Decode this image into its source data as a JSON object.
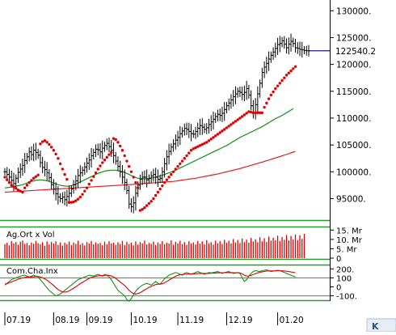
{
  "chart_data": [
    {
      "type": "line",
      "panel": "price",
      "y_ticks": [
        "130000.",
        "125000.",
        "120000.",
        "115000.",
        "110000.",
        "105000.",
        "100000.",
        "95000."
      ],
      "y_tick_values": [
        130000,
        125000,
        120000,
        115000,
        110000,
        105000,
        100000,
        95000
      ],
      "ylim": [
        91000,
        132000
      ],
      "last_price_label": "122540.2",
      "last_price": 122540.2,
      "x_tick_labels": [
        "07.19",
        "08.19",
        "09.19",
        "10.19",
        "11.19",
        "12.19",
        "01.20"
      ],
      "x_tick_index": [
        0,
        22,
        37,
        57,
        78,
        100,
        123
      ],
      "n_bars": 138,
      "series": [
        {
          "kind": "ohlc",
          "color": "#000000",
          "close": [
            100000,
            99500,
            99000,
            98400,
            97800,
            98800,
            99900,
            100500,
            101200,
            102100,
            102800,
            103700,
            103200,
            104000,
            103600,
            103100,
            101700,
            100800,
            100400,
            99800,
            98900,
            97600,
            96800,
            95900,
            95300,
            95000,
            95300,
            94800,
            95400,
            96000,
            96800,
            97600,
            98300,
            99300,
            99800,
            100300,
            100900,
            101600,
            102200,
            103000,
            103600,
            104200,
            104100,
            103700,
            104400,
            104900,
            105300,
            104700,
            104000,
            103000,
            102000,
            101000,
            100000,
            99000,
            98000,
            96500,
            94000,
            93500,
            94200,
            96000,
            97500,
            98600,
            99000,
            99000,
            98500,
            98800,
            99200,
            99500,
            99000,
            98600,
            98800,
            100000,
            101500,
            102800,
            103800,
            104600,
            105200,
            105900,
            106400,
            107100,
            107600,
            108100,
            107900,
            107500,
            107100,
            107000,
            107500,
            108100,
            108600,
            108300,
            107900,
            108200,
            108800,
            109300,
            109800,
            110300,
            110700,
            110500,
            110900,
            111600,
            112300,
            112800,
            113400,
            114000,
            114500,
            115000,
            114800,
            114400,
            114800,
            115500,
            114300,
            112300,
            111000,
            112500,
            114500,
            116500,
            118500,
            119500,
            120200,
            121000,
            121700,
            122300,
            123000,
            123700,
            123900,
            124400,
            123800,
            123100,
            123800,
            124300,
            123900,
            123100,
            123000,
            122800,
            122700,
            122600,
            122550,
            122540
          ]
        },
        {
          "kind": "ma-short",
          "color": "#1a8c1a",
          "values": [
            97000,
            97050,
            97100,
            97150,
            97200,
            97300,
            97400,
            97500,
            97600,
            97750,
            97900,
            98050,
            98200,
            98300,
            98400,
            98450,
            98500,
            98450,
            98400,
            98300,
            98200,
            98050,
            97900,
            97750,
            97600,
            97500,
            97400,
            97350,
            97300,
            97350,
            97400,
            97550,
            97700,
            97900,
            98100,
            98300,
            98500,
            98700,
            98900,
            99100,
            99300,
            99500,
            99700,
            99850,
            100000,
            100100,
            100200,
            100250,
            100300,
            100300,
            100300,
            100200,
            100100,
            100000,
            99900,
            99700,
            99500,
            99300,
            99100,
            98950,
            98800,
            98750,
            98700,
            98700,
            98700,
            98750,
            98800,
            98900,
            99000,
            99100,
            99200,
            99350,
            99500,
            99650,
            99800,
            99950,
            100100,
            100300,
            100500,
            100700,
            100900,
            101100,
            101300,
            101500,
            101700,
            101900,
            102100,
            102300,
            102500,
            102700,
            102900,
            103100,
            103300,
            103500,
            103700,
            103900,
            104100,
            104300,
            104500,
            104700,
            104900,
            105150,
            105400,
            105650,
            105900,
            106150,
            106400,
            106600,
            106800,
            107000,
            107200,
            107400,
            107600,
            107800,
            108000,
            108200,
            108400,
            108650,
            108900,
            109150,
            109400,
            109650,
            109900,
            110100,
            110300,
            110500,
            110750,
            111000,
            111250,
            111500,
            111750
          ]
        },
        {
          "kind": "ma-long",
          "color": "#e02020",
          "values": [
            96200,
            96225,
            96250,
            96275,
            96300,
            96325,
            96350,
            96375,
            96400,
            96425,
            96450,
            96475,
            96500,
            96525,
            96550,
            96575,
            96600,
            96625,
            96650,
            96675,
            96700,
            96725,
            96750,
            96775,
            96800,
            96825,
            96850,
            96875,
            96900,
            96925,
            96950,
            96975,
            97000,
            97025,
            97050,
            97075,
            97100,
            97125,
            97150,
            97175,
            97200,
            97225,
            97250,
            97275,
            97300,
            97325,
            97350,
            97375,
            97400,
            97425,
            97450,
            97475,
            97500,
            97525,
            97550,
            97575,
            97600,
            97630,
            97660,
            97690,
            97720,
            97750,
            97780,
            97810,
            97840,
            97870,
            97900,
            97930,
            97960,
            97990,
            98020,
            98050,
            98080,
            98110,
            98140,
            98170,
            98200,
            98260,
            98320,
            98380,
            98440,
            98500,
            98560,
            98620,
            98680,
            98740,
            98800,
            98880,
            98960,
            99040,
            99120,
            99200,
            99280,
            99360,
            99440,
            99520,
            99600,
            99700,
            99800,
            99900,
            100000,
            100100,
            100200,
            100300,
            100400,
            100500,
            100600,
            100720,
            100840,
            100960,
            101080,
            101200,
            101320,
            101440,
            101560,
            101680,
            101800,
            101930,
            102060,
            102190,
            102320,
            102450,
            102580,
            102710,
            102840,
            102970,
            103100,
            103240,
            103380,
            103520,
            103660,
            103800
          ]
        },
        {
          "kind": "sar",
          "color": "#e00000",
          "values": [
            99000,
            98500,
            98000,
            97500,
            97200,
            96900,
            96600,
            96400,
            96200,
            97000,
            97500,
            98000,
            98400,
            98800,
            99100,
            99400,
            105200,
            105600,
            105800,
            105500,
            105100,
            104600,
            104000,
            103300,
            102500,
            101500,
            100500,
            99500,
            98600,
            94300,
            94300,
            94400,
            94600,
            94900,
            95300,
            95800,
            96400,
            97000,
            97700,
            98400,
            99100,
            99800,
            100500,
            101100,
            101700,
            102200,
            102700,
            103200,
            103600,
            106200,
            106000,
            105500,
            104800,
            104000,
            103000,
            102000,
            101000,
            100000,
            99000,
            98000,
            97000,
            92800,
            93000,
            93300,
            93700,
            94100,
            94500,
            95000,
            95600,
            96200,
            96800,
            97400,
            98000,
            98500,
            99000,
            99500,
            100000,
            100500,
            101000,
            101500,
            102000,
            102500,
            103000,
            103500,
            104000,
            104300,
            104500,
            104700,
            104900,
            105100,
            105300,
            105500,
            105800,
            106100,
            106400,
            106700,
            107000,
            107300,
            107600,
            107900,
            108200,
            108500,
            108800,
            109100,
            109400,
            109700,
            110000,
            110300,
            110600,
            110900,
            111200,
            111100,
            111000,
            111000,
            111000,
            111000,
            111000,
            112000,
            112800,
            113600,
            114300,
            114900,
            115500,
            116000,
            116500,
            117000,
            117500,
            118000,
            118400,
            118800,
            119200,
            119600
          ]
        },
        {
          "kind": "last-price-line",
          "color": "#1a1a8c"
        }
      ]
    },
    {
      "type": "bar",
      "panel": "volume",
      "title": "Ag.Ort x Vol",
      "y_ticks": [
        "15. Mr",
        "10. Mr",
        "5. Mr",
        "0"
      ],
      "y_tick_values": [
        15,
        10,
        5,
        0
      ],
      "ylim": [
        0,
        16
      ],
      "unit": "Mr",
      "series": [
        {
          "name": "volume",
          "color": "#e00000",
          "values": [
            7.5,
            8.2,
            6.8,
            9.1,
            7.9,
            8.6,
            7.2,
            8.8,
            9.4,
            7.6,
            8.1,
            6.9,
            8.3,
            7.7,
            9.2,
            8.0,
            7.4,
            8.5,
            6.6,
            8.9,
            7.3,
            8.7,
            7.8,
            9.0,
            7.1,
            8.4,
            6.7,
            8.2,
            7.5,
            8.9,
            7.0,
            8.3,
            7.6,
            9.3,
            7.2,
            8.0,
            6.8,
            8.6,
            7.9,
            9.1,
            7.3,
            8.4,
            7.7,
            8.1,
            6.9,
            8.8,
            7.4,
            9.0,
            7.8,
            8.2,
            7.1,
            8.5,
            7.6,
            9.2,
            7.0,
            8.7,
            7.5,
            8.3,
            6.8,
            8.9,
            7.2,
            8.6,
            7.9,
            9.4,
            7.3,
            8.1,
            7.7,
            8.8,
            7.0,
            8.4,
            7.6,
            9.1,
            7.4,
            8.2,
            7.8,
            9.5,
            7.2,
            8.7,
            7.9,
            9.3,
            7.5,
            8.6,
            7.1,
            9.0,
            7.8,
            8.4,
            7.3,
            9.2,
            7.7,
            8.9,
            7.4,
            9.6,
            7.9,
            8.5,
            7.2,
            9.4,
            8.0,
            9.1,
            7.6,
            9.8,
            8.2,
            9.3,
            7.8,
            10.2,
            8.4,
            9.7,
            8.0,
            10.5,
            8.6,
            9.9,
            8.3,
            10.8,
            8.9,
            10.1,
            8.5,
            11.2,
            9.0,
            10.6,
            8.7,
            11.5,
            9.3,
            10.9,
            9.6,
            12.0,
            9.1,
            11.3,
            9.8,
            12.4,
            9.5,
            11.8,
            10.0,
            12.6,
            9.7,
            12.2,
            10.3,
            13.0
          ]
        }
      ]
    },
    {
      "type": "line",
      "panel": "cci",
      "title": "Com.Cha.Inx",
      "y_ticks": [
        "200.",
        "100",
        "0",
        "-100."
      ],
      "y_tick_values": [
        200,
        100,
        0,
        -100
      ],
      "ylim": [
        -140,
        230
      ],
      "reference_lines": [
        100,
        -100
      ],
      "series": [
        {
          "kind": "cci",
          "color": "#1a8c1a",
          "values": [
            20,
            40,
            60,
            80,
            90,
            100,
            110,
            120,
            125,
            130,
            120,
            110,
            120,
            130,
            120,
            110,
            80,
            50,
            20,
            -10,
            -40,
            -60,
            -80,
            -100,
            -90,
            -80,
            -60,
            -40,
            -20,
            0,
            20,
            40,
            60,
            80,
            90,
            100,
            110,
            120,
            130,
            125,
            120,
            130,
            140,
            130,
            120,
            140,
            130,
            110,
            80,
            40,
            0,
            -40,
            -60,
            -80,
            -100,
            -140,
            -160,
            -130,
            -90,
            -50,
            -20,
            0,
            20,
            30,
            40,
            30,
            20,
            40,
            60,
            40,
            30,
            60,
            90,
            110,
            130,
            140,
            150,
            160,
            150,
            140,
            130,
            150,
            160,
            150,
            140,
            150,
            160,
            170,
            160,
            150,
            140,
            150,
            160,
            155,
            160,
            165,
            170,
            160,
            150,
            160,
            165,
            170,
            160,
            150,
            155,
            160,
            150,
            100,
            60,
            80,
            120,
            150,
            170,
            180,
            175,
            170,
            180,
            185,
            190,
            180,
            170,
            175,
            180,
            185,
            180,
            170,
            160,
            150,
            140,
            130,
            120,
            110
          ]
        },
        {
          "kind": "cci-signal",
          "color": "#e00000",
          "values": [
            30,
            35,
            45,
            55,
            65,
            75,
            85,
            95,
            100,
            105,
            110,
            110,
            110,
            112,
            115,
            115,
            110,
            100,
            90,
            75,
            55,
            35,
            15,
            -10,
            -30,
            -45,
            -55,
            -60,
            -55,
            -45,
            -30,
            -15,
            0,
            20,
            35,
            50,
            65,
            80,
            95,
            105,
            112,
            118,
            122,
            125,
            125,
            128,
            130,
            128,
            122,
            110,
            95,
            75,
            55,
            35,
            15,
            -10,
            -40,
            -60,
            -75,
            -80,
            -75,
            -65,
            -50,
            -35,
            -20,
            -5,
            5,
            15,
            25,
            30,
            30,
            35,
            45,
            60,
            75,
            90,
            105,
            118,
            128,
            135,
            138,
            140,
            142,
            143,
            144,
            145,
            146,
            148,
            150,
            151,
            150,
            150,
            151,
            152,
            153,
            154,
            156,
            157,
            157,
            158,
            159,
            160,
            159,
            158,
            157,
            157,
            155,
            145,
            130,
            120,
            122,
            128,
            138,
            148,
            156,
            162,
            168,
            172,
            176,
            178,
            178,
            178,
            179,
            180,
            180,
            179,
            177,
            174,
            170,
            166,
            162,
            158
          ]
        }
      ]
    }
  ],
  "corner_widget": {
    "text": "K"
  }
}
